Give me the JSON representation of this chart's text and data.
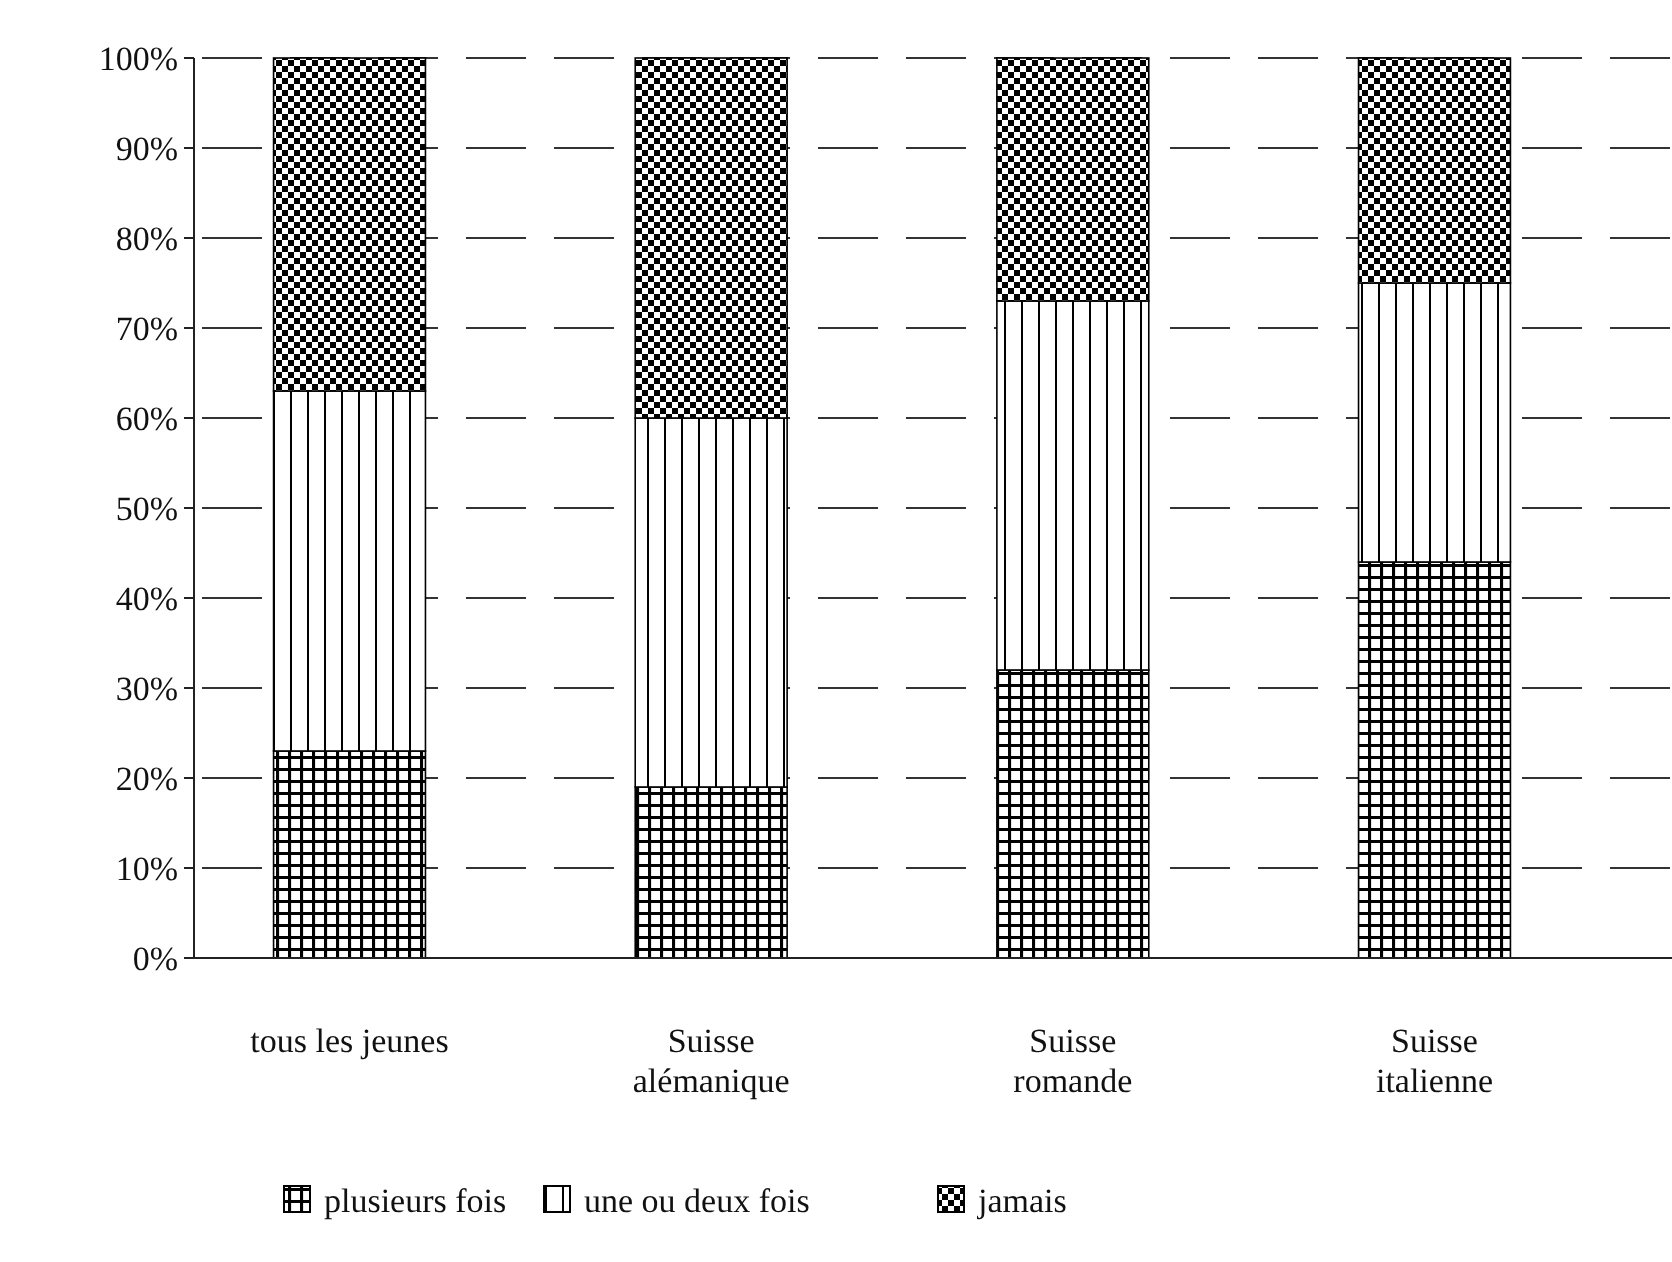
{
  "chart_data": {
    "type": "bar",
    "stacked": true,
    "categories": [
      "tous les jeunes",
      "Suisse\nalémanique",
      "Suisse\nromande",
      "Suisse\nitalienne"
    ],
    "series": [
      {
        "name": "plusieurs fois",
        "color": "#000000",
        "values": [
          23,
          19,
          32,
          44
        ]
      },
      {
        "name": "une ou deux fois",
        "color": "#000000",
        "values": [
          40,
          41,
          41,
          31
        ]
      },
      {
        "name": "jamais",
        "color": "#000000",
        "values": [
          37,
          40,
          27,
          25
        ]
      }
    ],
    "ylim": [
      0,
      100
    ],
    "yticks": [
      {
        "value": 0,
        "label": "0%"
      },
      {
        "value": 10,
        "label": "10%"
      },
      {
        "value": 20,
        "label": "20%"
      },
      {
        "value": 30,
        "label": "30%"
      },
      {
        "value": 40,
        "label": "40%"
      },
      {
        "value": 50,
        "label": "50%"
      },
      {
        "value": 60,
        "label": "60%"
      },
      {
        "value": 70,
        "label": "70%"
      },
      {
        "value": 80,
        "label": "80%"
      },
      {
        "value": 90,
        "label": "90%"
      },
      {
        "value": 100,
        "label": "100%"
      }
    ],
    "grid": "y",
    "legend": "bottom"
  }
}
